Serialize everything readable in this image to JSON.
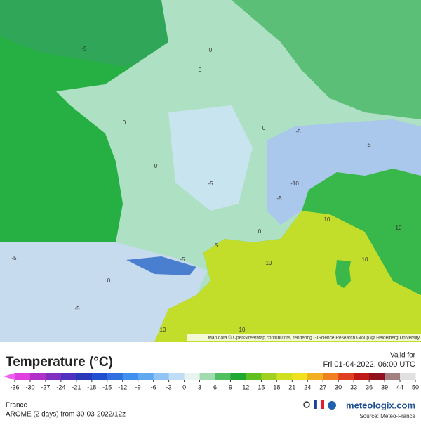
{
  "map": {
    "attribution": "Map data © OpenStreetMap contributors, rendering GIScience Research Group @ Heidelberg University",
    "contour_labels": [
      "-5",
      "0",
      "0",
      "0",
      "0",
      "-5",
      "0",
      "-5",
      "-10",
      "-5",
      "10",
      "-5",
      "-5",
      "-5",
      "0",
      "10",
      "10",
      "10",
      "10",
      "0",
      "-5",
      "10",
      "5"
    ]
  },
  "legend": {
    "title": "Temperature (°C)",
    "ticks": [
      -36,
      -30,
      -27,
      -24,
      -21,
      -18,
      -15,
      -12,
      -9,
      -6,
      -3,
      0,
      3,
      6,
      9,
      12,
      15,
      18,
      21,
      24,
      27,
      30,
      33,
      36,
      39,
      44,
      50
    ],
    "colors": [
      "#e040e0",
      "#b030c8",
      "#8030c0",
      "#5030c0",
      "#2838b8",
      "#2050d0",
      "#3070e0",
      "#4090f0",
      "#60a8f0",
      "#90c4f4",
      "#c0dcf6",
      "#e8f4f0",
      "#a0dcb0",
      "#50c060",
      "#20a830",
      "#60c020",
      "#a0d020",
      "#d0e020",
      "#f0e020",
      "#f0b020",
      "#f08020",
      "#e04020",
      "#c01818",
      "#901020",
      "#a08080",
      "#e0e0e0"
    ],
    "arrow_color": "#f060f0"
  },
  "valid": {
    "label": "Valid for",
    "time": "Fri 01-04-2022, 06:00 UTC"
  },
  "footer": {
    "region": "France",
    "model": "AROME (2 days) from  30-03-2022/12z",
    "brand": "meteologix.com",
    "source": "Source: Météo-France"
  }
}
